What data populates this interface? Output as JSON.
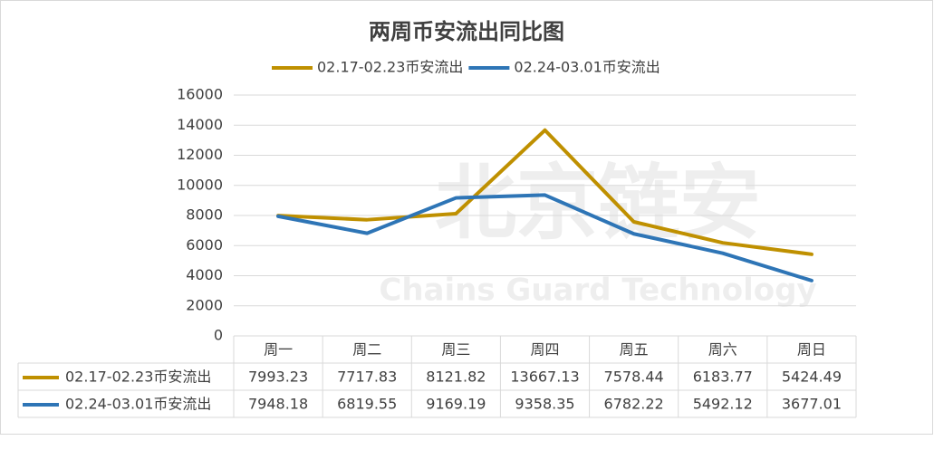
{
  "chart_data": {
    "type": "line",
    "title": "两周币安流出同比图",
    "categories": [
      "周一",
      "周二",
      "周三",
      "周四",
      "周五",
      "周六",
      "周日"
    ],
    "series": [
      {
        "name": "02.17-02.23币安流出",
        "color": "#bf9000",
        "values": [
          7993.23,
          7717.83,
          8121.82,
          13667.13,
          7578.44,
          6183.77,
          5424.49
        ]
      },
      {
        "name": "02.24-03.01币安流出",
        "color": "#2e75b6",
        "values": [
          7948.18,
          6819.55,
          9169.19,
          9358.35,
          6782.22,
          5492.12,
          3677.01
        ]
      }
    ],
    "ylim": [
      0,
      16000
    ],
    "yticks": [
      0,
      2000,
      4000,
      6000,
      8000,
      10000,
      12000,
      14000,
      16000
    ],
    "grid": true,
    "legend": "top",
    "data_table": true
  },
  "watermark": {
    "text": "北京链安",
    "subtitle": "Chains Guard Technology"
  }
}
